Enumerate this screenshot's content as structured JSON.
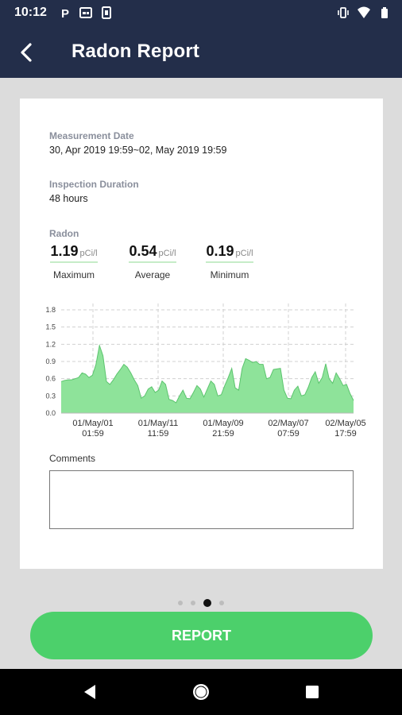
{
  "status_bar": {
    "time": "10:12",
    "left_icons": [
      "parking-icon",
      "card-icon",
      "sim-icon"
    ],
    "right_icons": [
      "vibrate-icon",
      "wifi-icon",
      "battery-icon"
    ]
  },
  "app_bar": {
    "title": "Radon Report",
    "back_icon": "back-arrow-icon",
    "background": "#232e4a"
  },
  "report": {
    "measurement_date_label": "Measurement Date",
    "measurement_date_value": "30, Apr 2019 19:59~02, May 2019 19:59",
    "inspection_duration_label": "Inspection Duration",
    "inspection_duration_value": "48 hours",
    "radon_label": "Radon",
    "stats": [
      {
        "value": "1.19",
        "unit": "pCi/l",
        "caption": "Maximum"
      },
      {
        "value": "0.54",
        "unit": "pCi/l",
        "caption": "Average"
      },
      {
        "value": "0.19",
        "unit": "pCi/l",
        "caption": "Minimum"
      }
    ],
    "comments_label": "Comments",
    "comments_value": ""
  },
  "chart_data": {
    "type": "area",
    "title": "",
    "xlabel": "",
    "ylabel": "",
    "ylim": [
      0,
      1.8
    ],
    "y_ticks": [
      "0.0",
      "0.3",
      "0.6",
      "0.9",
      "1.2",
      "1.5",
      "1.8"
    ],
    "x_tick_labels": [
      [
        "01/May/01",
        "01:59"
      ],
      [
        "01/May/11",
        "11:59"
      ],
      [
        "01/May/09",
        "21:59"
      ],
      [
        "02/May/07",
        "07:59"
      ],
      [
        "02/May/05",
        "17:59"
      ]
    ],
    "grid": true,
    "fill_color": "#8ee39a",
    "line_color": "#5cc46e",
    "series": [
      {
        "values": [
          0.55,
          0.57,
          0.58,
          0.58,
          0.6,
          0.62,
          0.7,
          0.68,
          0.62,
          0.66,
          0.85,
          1.18,
          1.0,
          0.55,
          0.5,
          0.58,
          0.68,
          0.76,
          0.85,
          0.8,
          0.7,
          0.58,
          0.48,
          0.26,
          0.3,
          0.42,
          0.46,
          0.36,
          0.4,
          0.56,
          0.5,
          0.24,
          0.22,
          0.18,
          0.3,
          0.4,
          0.26,
          0.25,
          0.36,
          0.48,
          0.42,
          0.28,
          0.42,
          0.56,
          0.5,
          0.3,
          0.32,
          0.48,
          0.62,
          0.78,
          0.44,
          0.4,
          0.78,
          0.95,
          0.92,
          0.88,
          0.9,
          0.85,
          0.85,
          0.6,
          0.62,
          0.76,
          0.77,
          0.78,
          0.4,
          0.26,
          0.25,
          0.4,
          0.47,
          0.3,
          0.32,
          0.45,
          0.62,
          0.72,
          0.52,
          0.62,
          0.86,
          0.6,
          0.52,
          0.7,
          0.6,
          0.48,
          0.5,
          0.34,
          0.22
        ]
      }
    ]
  },
  "pager": {
    "count": 4,
    "active": 2
  },
  "report_button": {
    "label": "REPORT",
    "color": "#4cd06b"
  },
  "nav_bar": {
    "icons": [
      "nav-back-icon",
      "nav-home-icon",
      "nav-recents-icon"
    ]
  }
}
